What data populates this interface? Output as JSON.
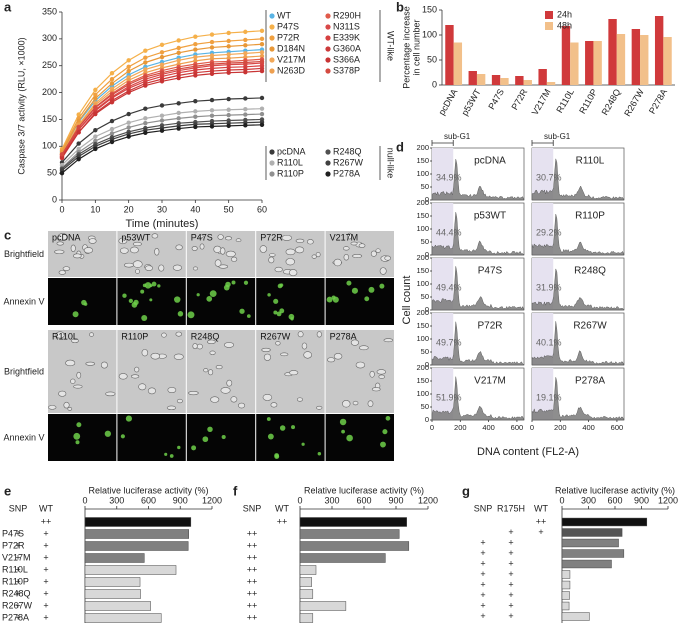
{
  "panel_labels": [
    "a",
    "b",
    "c",
    "d",
    "e",
    "f",
    "g"
  ],
  "chart_data": [
    {
      "type": "line",
      "x_label": "Time (minutes)",
      "y_label": "Caspase 3/7 activity (RLU, ×1000)",
      "x": [
        0,
        5,
        10,
        15,
        20,
        25,
        30,
        35,
        40,
        45,
        50,
        55,
        60
      ],
      "xlim": [
        0,
        60
      ],
      "xticks": [
        0,
        10,
        20,
        30,
        40,
        50,
        60
      ],
      "ylim": [
        0,
        350
      ],
      "yticks": [
        0,
        50,
        100,
        150,
        200,
        250,
        300,
        350
      ],
      "legend_groups": [
        "WT-like",
        "null-like"
      ],
      "series": [
        {
          "name": "WT",
          "color": "#5ab4e5",
          "values": [
            90,
            145,
            185,
            212,
            233,
            248,
            257,
            265,
            271,
            274,
            276,
            278,
            280
          ]
        },
        {
          "name": "P47S",
          "color": "#f5b04a",
          "values": [
            95,
            159,
            205,
            236,
            260,
            278,
            289,
            297,
            304,
            308,
            311,
            313,
            315
          ]
        },
        {
          "name": "P72R",
          "color": "#f0a040",
          "values": [
            92,
            152,
            196,
            225,
            248,
            265,
            275,
            283,
            290,
            294,
            296,
            298,
            300
          ]
        },
        {
          "name": "D184N",
          "color": "#e89838",
          "values": [
            88,
            147,
            189,
            217,
            240,
            256,
            266,
            274,
            280,
            284,
            286,
            288,
            290
          ]
        },
        {
          "name": "V217M",
          "color": "#f2a858",
          "values": [
            85,
            140,
            180,
            207,
            228,
            243,
            252,
            260,
            266,
            269,
            271,
            273,
            275
          ]
        },
        {
          "name": "N263D",
          "color": "#eea050",
          "values": [
            86,
            139,
            177,
            202,
            223,
            237,
            246,
            253,
            259,
            263,
            264,
            266,
            268
          ]
        },
        {
          "name": "R290H",
          "color": "#e05a4a",
          "values": [
            84,
            136,
            173,
            198,
            218,
            232,
            241,
            248,
            253,
            257,
            258,
            260,
            262
          ]
        },
        {
          "name": "N311S",
          "color": "#d84848",
          "values": [
            80,
            131,
            168,
            192,
            211,
            225,
            234,
            241,
            246,
            250,
            252,
            253,
            255
          ]
        },
        {
          "name": "E339K",
          "color": "#d64040",
          "values": [
            82,
            131,
            166,
            190,
            208,
            221,
            230,
            237,
            242,
            245,
            247,
            248,
            250
          ]
        },
        {
          "name": "G360A",
          "color": "#cc3a3a",
          "values": [
            78,
            126,
            162,
            185,
            203,
            217,
            225,
            232,
            237,
            240,
            242,
            243,
            245
          ]
        },
        {
          "name": "S366A",
          "color": "#c83434",
          "values": [
            80,
            126,
            160,
            182,
            200,
            213,
            221,
            227,
            232,
            235,
            237,
            238,
            240
          ]
        },
        {
          "name": "S378P",
          "color": "#d44a40",
          "values": [
            85,
            135,
            172,
            196,
            215,
            229,
            237,
            244,
            249,
            253,
            255,
            256,
            258
          ]
        },
        {
          "name": "pcDNA",
          "color": "#3a3a3a",
          "values": [
            70,
            105,
            130,
            147,
            160,
            170,
            176,
            180,
            184,
            186,
            188,
            189,
            190
          ]
        },
        {
          "name": "R110L",
          "color": "#b0b0b0",
          "values": [
            65,
            95,
            118,
            132,
            144,
            152,
            157,
            162,
            165,
            167,
            168,
            169,
            170
          ]
        },
        {
          "name": "R110P",
          "color": "#909090",
          "values": [
            60,
            89,
            110,
            124,
            135,
            143,
            148,
            152,
            155,
            157,
            158,
            159,
            160
          ]
        },
        {
          "name": "R248Q",
          "color": "#505050",
          "values": [
            58,
            85,
            104,
            117,
            127,
            134,
            139,
            143,
            145,
            147,
            148,
            149,
            150
          ]
        },
        {
          "name": "R267W",
          "color": "#404040",
          "values": [
            55,
            81,
            100,
            113,
            123,
            130,
            134,
            138,
            141,
            142,
            143,
            144,
            145
          ]
        },
        {
          "name": "P278A",
          "color": "#202020",
          "values": [
            50,
            76,
            95,
            108,
            118,
            125,
            129,
            133,
            136,
            137,
            138,
            139,
            140
          ]
        }
      ]
    },
    {
      "type": "bar",
      "y_label": [
        "Percentage increase",
        "in cell number"
      ],
      "categories": [
        "pcDNA",
        "p53WT",
        "P47S",
        "P72R",
        "V217M",
        "R110L",
        "R110P",
        "R248Q",
        "R267W",
        "P278A"
      ],
      "ylim": [
        0,
        150
      ],
      "yticks": [
        0,
        50,
        100,
        150
      ],
      "series": [
        {
          "name": "24h",
          "color": "#d0393b",
          "values": [
            120,
            28,
            20,
            18,
            32,
            118,
            88,
            132,
            112,
            138
          ]
        },
        {
          "name": "48h",
          "color": "#f2c08a",
          "values": [
            85,
            22,
            14,
            10,
            6,
            85,
            88,
            102,
            100,
            96
          ]
        }
      ]
    },
    {
      "type": "hbar",
      "title": "Relative luciferase activity (%)",
      "xlim": [
        0,
        1200
      ],
      "xticks": [
        0,
        300,
        600,
        900,
        1200
      ],
      "table": {
        "columns": [
          "SNP",
          "WT"
        ],
        "rows": [
          [
            null,
            "++"
          ],
          [
            "+",
            "+"
          ],
          [
            "+",
            "+"
          ],
          [
            "+",
            "+"
          ],
          [
            "+",
            "+"
          ],
          [
            "+",
            "+"
          ],
          [
            "+",
            "+"
          ],
          [
            "+",
            "+"
          ],
          [
            "+",
            "+"
          ]
        ]
      },
      "categories": [
        null,
        "P47S",
        "P72R",
        "V217M",
        "R110L",
        "R110P",
        "R248Q",
        "R267W",
        "P278A"
      ],
      "values": [
        1000,
        980,
        975,
        560,
        860,
        520,
        525,
        620,
        720
      ],
      "colors": [
        "#111111",
        "#808080",
        "#808080",
        "#808080",
        "#d8d8d8",
        "#d8d8d8",
        "#d8d8d8",
        "#d8d8d8",
        "#d8d8d8"
      ]
    },
    {
      "type": "hbar",
      "title": "Relative luciferase activity (%)",
      "xlim": [
        0,
        1200
      ],
      "xticks": [
        0,
        300,
        600,
        900,
        1200
      ],
      "table": {
        "columns": [
          "SNP",
          "WT"
        ],
        "rows": [
          [
            null,
            "++"
          ],
          [
            "++",
            null
          ],
          [
            "++",
            null
          ],
          [
            "++",
            null
          ],
          [
            "++",
            null
          ],
          [
            "++",
            null
          ],
          [
            "++",
            null
          ],
          [
            "++",
            null
          ],
          [
            "++",
            null
          ]
        ]
      },
      "values": [
        1000,
        930,
        1020,
        800,
        150,
        110,
        120,
        430,
        120
      ],
      "colors": [
        "#111111",
        "#808080",
        "#808080",
        "#808080",
        "#d8d8d8",
        "#d8d8d8",
        "#d8d8d8",
        "#d8d8d8",
        "#d8d8d8"
      ]
    },
    {
      "type": "hbar",
      "title": "Relative luciferase activity (%)",
      "xlim": [
        0,
        1200
      ],
      "xticks": [
        0,
        300,
        600,
        900,
        1200
      ],
      "table": {
        "columns": [
          "SNP",
          "R175H",
          "WT"
        ],
        "rows": [
          [
            null,
            null,
            "++"
          ],
          [
            null,
            "+",
            "+"
          ],
          [
            "+",
            "+",
            null
          ],
          [
            "+",
            "+",
            null
          ],
          [
            "+",
            "+",
            null
          ],
          [
            "+",
            "+",
            null
          ],
          [
            "+",
            "+",
            null
          ],
          [
            "+",
            "+",
            null
          ],
          [
            "+",
            "+",
            null
          ],
          [
            "+",
            "+",
            null
          ]
        ]
      },
      "values": [
        960,
        680,
        640,
        700,
        560,
        90,
        90,
        85,
        80,
        310
      ],
      "colors": [
        "#111111",
        "#555555",
        "#808080",
        "#808080",
        "#808080",
        "#d8d8d8",
        "#d8d8d8",
        "#d8d8d8",
        "#d8d8d8",
        "#d8d8d8"
      ]
    }
  ],
  "micrographs": {
    "row_labels": [
      "Brightfield",
      "Annexin V"
    ],
    "sets": [
      [
        "pcDNA",
        "p53WT",
        "P47S",
        "P72R",
        "V217M"
      ],
      [
        "R110L",
        "R110P",
        "R248Q",
        "R267W",
        "P278A"
      ]
    ]
  },
  "flow": {
    "y_label": "Cell count",
    "x_label": "DNA content (FL2-A)",
    "gate_label": "sub-G1",
    "xlim": [
      0,
      650
    ],
    "xticks": [
      0,
      200,
      400,
      600
    ],
    "ylim": [
      0,
      200
    ],
    "yticks": [
      0,
      50,
      100,
      150,
      200
    ],
    "panels": [
      {
        "name": "pcDNA",
        "sub_g1": "34.9%"
      },
      {
        "name": "R110L",
        "sub_g1": "30.7%"
      },
      {
        "name": "p53WT",
        "sub_g1": "44.4%"
      },
      {
        "name": "R110P",
        "sub_g1": "29.2%"
      },
      {
        "name": "P47S",
        "sub_g1": "49.4%"
      },
      {
        "name": "R248Q",
        "sub_g1": "31.9%"
      },
      {
        "name": "P72R",
        "sub_g1": "49.7%"
      },
      {
        "name": "R267W",
        "sub_g1": "40.1%"
      },
      {
        "name": "V217M",
        "sub_g1": "51.9%"
      },
      {
        "name": "P278A",
        "sub_g1": "19.1%"
      }
    ]
  }
}
